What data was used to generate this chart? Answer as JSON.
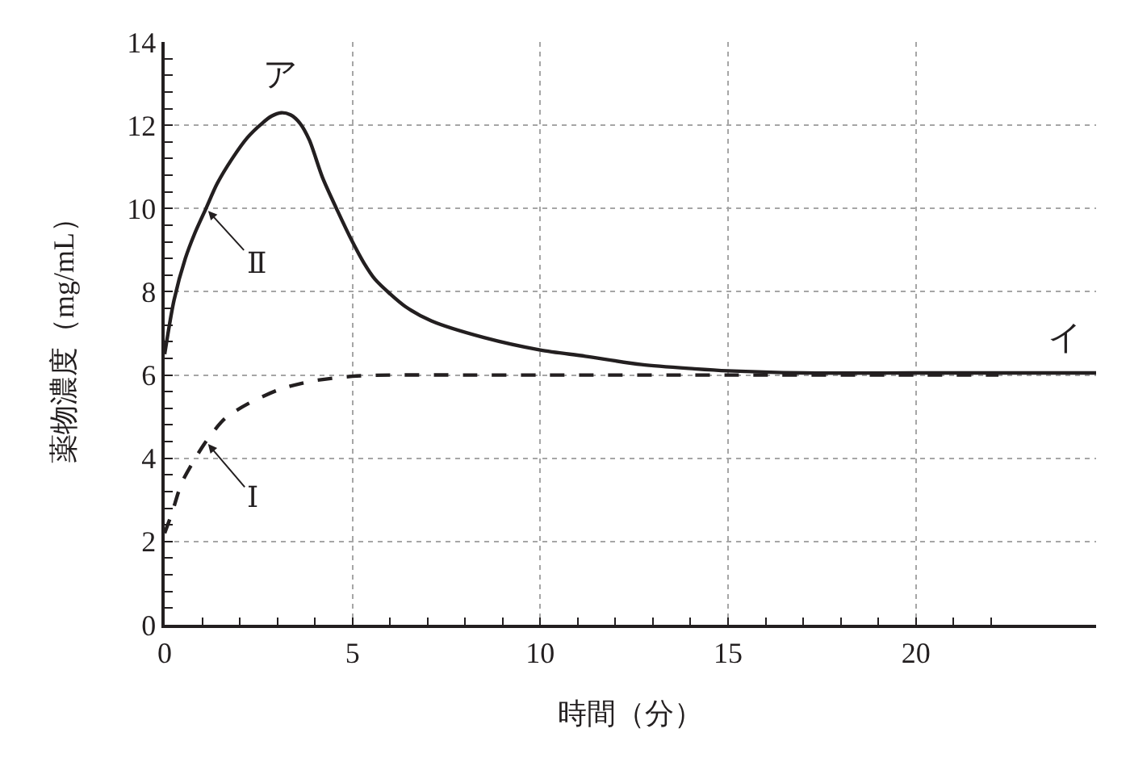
{
  "chart_data": {
    "type": "line",
    "xlabel": "時間（分）",
    "ylabel": "薬物濃度（mg/mL）",
    "xlim": [
      0,
      24.8
    ],
    "xticks": [
      0,
      5,
      10,
      15,
      20,
      {
        "value": 1,
        "label": null
      },
      {
        "value": 2,
        "label": null
      },
      {
        "value": 3,
        "label": null
      },
      {
        "value": 4,
        "label": null
      },
      {
        "value": 6,
        "label": null
      },
      {
        "value": 7,
        "label": null
      },
      {
        "value": 8,
        "label": null
      },
      {
        "value": 9,
        "label": null
      },
      {
        "value": 11,
        "label": null
      },
      {
        "value": 12,
        "label": null
      },
      {
        "value": 13,
        "label": null
      },
      {
        "value": 14,
        "label": null
      },
      {
        "value": 16,
        "label": null
      },
      {
        "value": 17,
        "label": null
      },
      {
        "value": 18,
        "label": null
      },
      {
        "value": 19,
        "label": null
      },
      {
        "value": 21,
        "label": null
      },
      {
        "value": 22,
        "label": null
      }
    ],
    "ylim": [
      0,
      14
    ],
    "yticks": [
      0,
      2,
      4,
      6,
      8,
      10,
      12,
      14,
      {
        "value": 0.4,
        "label": null
      },
      {
        "value": 0.8,
        "label": null
      },
      {
        "value": 1.2,
        "label": null
      },
      {
        "value": 1.6,
        "label": null
      },
      {
        "value": 2.4,
        "label": null
      },
      {
        "value": 2.8,
        "label": null
      },
      {
        "value": 3.2,
        "label": null
      },
      {
        "value": 3.6,
        "label": null
      },
      {
        "value": 4.4,
        "label": null
      },
      {
        "value": 4.8,
        "label": null
      },
      {
        "value": 5.2,
        "label": null
      },
      {
        "value": 5.6,
        "label": null
      },
      {
        "value": 6.4,
        "label": null
      },
      {
        "value": 6.8,
        "label": null
      },
      {
        "value": 7.2,
        "label": null
      },
      {
        "value": 7.6,
        "label": null
      },
      {
        "value": 8.4,
        "label": null
      },
      {
        "value": 8.8,
        "label": null
      },
      {
        "value": 9.2,
        "label": null
      },
      {
        "value": 9.6,
        "label": null
      },
      {
        "value": 10.4,
        "label": null
      },
      {
        "value": 10.8,
        "label": null
      },
      {
        "value": 11.2,
        "label": null
      },
      {
        "value": 11.6,
        "label": null
      },
      {
        "value": 12.4,
        "label": null
      },
      {
        "value": 12.8,
        "label": null
      },
      {
        "value": 13.2,
        "label": null
      },
      {
        "value": 13.6,
        "label": null
      }
    ],
    "grid": true,
    "series": [
      {
        "color": "#231f20",
        "line_style": "solid",
        "x": [
          0,
          0.25,
          0.55,
          0.8,
          1.1,
          1.4,
          1.8,
          2.2,
          2.6,
          2.85,
          3.1,
          3.35,
          3.6,
          3.85,
          4.2,
          4.6,
          5.0,
          5.3,
          5.6,
          6.0,
          6.4,
          7.1,
          8.5,
          10,
          11.2,
          12.7,
          14.1,
          15,
          17,
          20,
          22.2,
          24.8
        ],
        "values": [
          6.5,
          7.8,
          8.8,
          9.4,
          10.0,
          10.6,
          11.2,
          11.7,
          12.05,
          12.22,
          12.3,
          12.25,
          12.05,
          11.65,
          10.75,
          9.95,
          9.2,
          8.7,
          8.3,
          7.95,
          7.65,
          7.3,
          6.9,
          6.6,
          6.45,
          6.25,
          6.15,
          6.1,
          6.05,
          6.05,
          6.05,
          6.05
        ]
      },
      {
        "color": "#231f20",
        "line_style": "dashed",
        "x": [
          0,
          0.2,
          0.45,
          0.75,
          1.1,
          1.6,
          2.2,
          3.05,
          3.9,
          5.0,
          6,
          8,
          10,
          15,
          20,
          22.2
        ],
        "values": [
          2.2,
          2.7,
          3.4,
          3.9,
          4.4,
          4.95,
          5.3,
          5.65,
          5.85,
          5.97,
          6.0,
          6.0,
          6.0,
          6.0,
          6.0,
          6.0
        ]
      }
    ],
    "annotations": [
      {
        "text": "ア",
        "x": 3.1,
        "y": 12.3
      },
      {
        "text": "イ",
        "x": 24,
        "y": 6.05
      },
      {
        "text": "Ⅱ",
        "x": 1.1,
        "y": 10.0
      },
      {
        "text": "Ⅰ",
        "x": 1.1,
        "y": 4.4
      }
    ]
  }
}
